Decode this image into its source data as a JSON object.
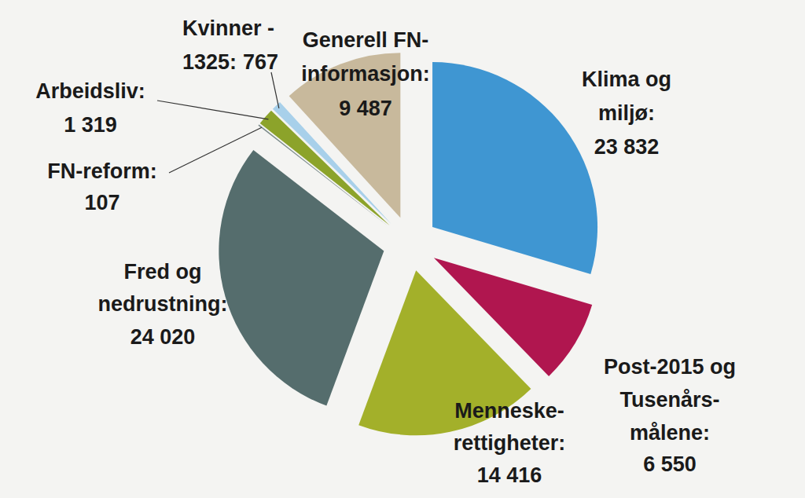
{
  "chart_data": {
    "type": "pie",
    "categories": [
      "Klima og\nmiljø:",
      "Post-2015 og\nTusenårs-\nmålene:",
      "Menneske-\nrettigheter:",
      "Fred og\nnedrustning:",
      "FN-reform:",
      "Arbeidsliv:",
      "Kvinner -\n1325:",
      "Generell FN-\ninformasjon:"
    ],
    "values": [
      23832,
      6550,
      14416,
      24020,
      107,
      1319,
      767,
      9487
    ],
    "value_labels": [
      "23 832",
      "6 550",
      "14 416",
      "24 020",
      "107",
      "1 319",
      "767",
      "9 487"
    ],
    "colors": [
      "#3f96d2",
      "#b0164f",
      "#a3b02a",
      "#556d6d",
      "#7b8a8a",
      "#8ca32a",
      "#a8d0ea",
      "#c8b99c"
    ],
    "data_labels": true
  }
}
